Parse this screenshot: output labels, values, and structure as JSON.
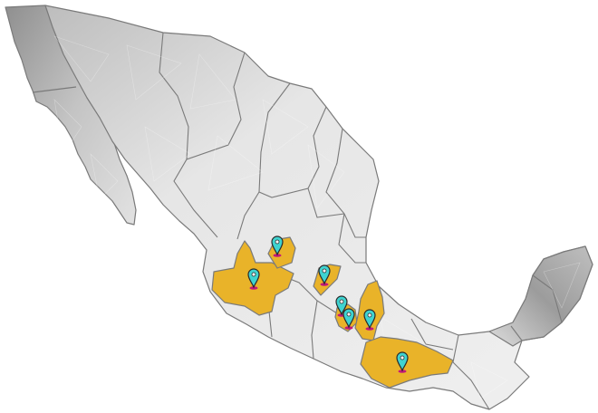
{
  "map": {
    "country": "Mexico",
    "colors": {
      "base_light": "#ececec",
      "base_mid": "#d2d2d2",
      "base_dark": "#9a9a9a",
      "border": "#7a7a7a",
      "highlight": "#e9b329",
      "highlight_border": "#c9921a",
      "pin_head": "#3fd3d0",
      "pin_outline": "#2a2a2a",
      "pin_base": "#c2187a"
    },
    "highlighted_regions": [
      {
        "name": "jalisco"
      },
      {
        "name": "zacatecas-south"
      },
      {
        "name": "queretaro"
      },
      {
        "name": "mexico-state"
      },
      {
        "name": "puebla"
      },
      {
        "name": "oaxaca"
      }
    ],
    "markers": [
      {
        "name": "marker-zacatecas",
        "icon": "map-pin-icon"
      },
      {
        "name": "marker-jalisco",
        "icon": "map-pin-icon"
      },
      {
        "name": "marker-queretaro",
        "icon": "map-pin-icon"
      },
      {
        "name": "marker-hidalgo-west",
        "icon": "map-pin-icon"
      },
      {
        "name": "marker-mexico-city",
        "icon": "map-pin-icon"
      },
      {
        "name": "marker-puebla",
        "icon": "map-pin-icon"
      },
      {
        "name": "marker-oaxaca",
        "icon": "map-pin-icon"
      }
    ]
  }
}
